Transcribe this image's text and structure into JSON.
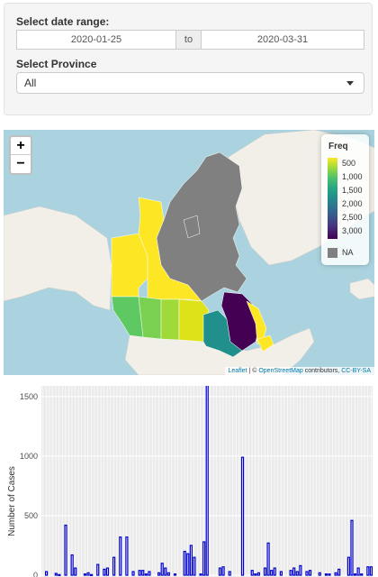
{
  "filters": {
    "date_label": "Select date range:",
    "start_date": "2020-01-25",
    "separator": "to",
    "end_date": "2020-03-31",
    "province_label": "Select Province",
    "province_value": "All"
  },
  "map": {
    "zoom_in": "+",
    "zoom_out": "−",
    "legend": {
      "title": "Freq",
      "ticks": [
        "500",
        "1,000",
        "1,500",
        "2,000",
        "2,500",
        "3,000"
      ],
      "na_label": "NA",
      "na_color": "#808080",
      "colors": [
        "#fde725",
        "#a0da39",
        "#4ac16d",
        "#1fa187",
        "#277f8e",
        "#365c8d",
        "#46327e",
        "#440154"
      ]
    },
    "attribution": {
      "leaflet": "Leaflet",
      "mid": " | © ",
      "osm": "OpenStreetMap",
      "contributors": " contributors, ",
      "license": "CC-BY-SA"
    },
    "region_colors": {
      "quebec": "#440154",
      "ontario": "#21908d",
      "bc": "#5ec962",
      "alberta": "#7ad151",
      "saskatchewan": "#a0da39",
      "manitoba": "#dde318",
      "atlantic": "#fde725",
      "yukon": "#fde725",
      "nwt": "#fde725",
      "nunavut": "#808080"
    }
  },
  "chart_data": {
    "type": "bar",
    "ylabel": "Number of Cases",
    "yticks": [
      0,
      500,
      1000,
      1500
    ],
    "ylim": [
      0,
      1650
    ],
    "bar_color": "#0000cc",
    "values": [
      0,
      30,
      0,
      0,
      15,
      5,
      0,
      420,
      0,
      170,
      60,
      0,
      0,
      10,
      20,
      5,
      0,
      90,
      0,
      50,
      60,
      0,
      150,
      0,
      320,
      0,
      320,
      0,
      30,
      0,
      40,
      40,
      10,
      30,
      0,
      0,
      20,
      100,
      60,
      20,
      0,
      10,
      0,
      0,
      200,
      180,
      250,
      150,
      0,
      10,
      280,
      1610,
      0,
      0,
      0,
      60,
      70,
      0,
      30,
      0,
      0,
      0,
      990,
      0,
      0,
      40,
      10,
      20,
      0,
      60,
      270,
      40,
      60,
      0,
      30,
      0,
      0,
      40,
      60,
      30,
      80,
      0,
      30,
      40,
      0,
      0,
      20,
      0,
      10,
      10,
      0,
      20,
      50,
      0,
      0,
      150,
      460,
      10,
      60,
      10,
      0,
      70,
      70
    ]
  }
}
